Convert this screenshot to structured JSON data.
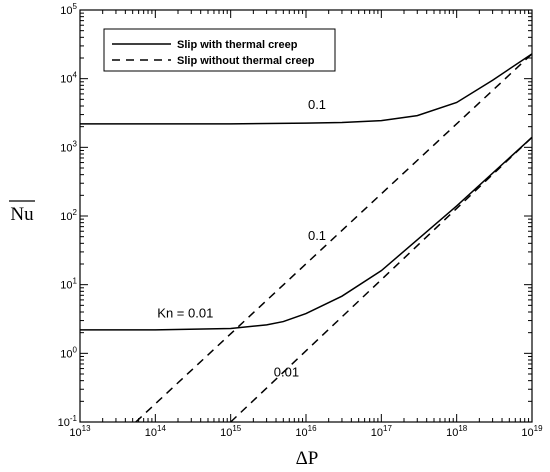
{
  "chart_data": {
    "type": "line",
    "xlabel": "ΔP",
    "ylabel": "Nu",
    "xscale": "log",
    "yscale": "log",
    "xlim": [
      10000000000000.0,
      1e+19
    ],
    "ylim": [
      0.1,
      100000
    ],
    "grid": false,
    "legend_position": "top-left",
    "x_ticks": [
      {
        "base": "10",
        "exp": "13",
        "value": 10000000000000.0
      },
      {
        "base": "10",
        "exp": "14",
        "value": 100000000000000.0
      },
      {
        "base": "10",
        "exp": "15",
        "value": 1000000000000000.0
      },
      {
        "base": "10",
        "exp": "16",
        "value": 1e+16
      },
      {
        "base": "10",
        "exp": "17",
        "value": 1e+17
      },
      {
        "base": "10",
        "exp": "18",
        "value": 1e+18
      },
      {
        "base": "10",
        "exp": "19",
        "value": 1e+19
      }
    ],
    "y_ticks": [
      {
        "base": "10",
        "exp": "-1",
        "value": 0.1
      },
      {
        "base": "10",
        "exp": "0",
        "value": 1
      },
      {
        "base": "10",
        "exp": "1",
        "value": 10
      },
      {
        "base": "10",
        "exp": "2",
        "value": 100
      },
      {
        "base": "10",
        "exp": "3",
        "value": 1000
      },
      {
        "base": "10",
        "exp": "4",
        "value": 10000
      },
      {
        "base": "10",
        "exp": "5",
        "value": 100000
      }
    ],
    "legend": [
      {
        "label": "Slip with thermal creep",
        "style": "solid"
      },
      {
        "label": "Slip without thermal creep",
        "style": "dashed"
      }
    ],
    "series": [
      {
        "style": "solid",
        "group": 0,
        "x": [
          10000000000000.0,
          100000000000000.0,
          1000000000000000.0,
          1e+16,
          3e+16,
          1e+17,
          3e+17,
          1e+18,
          3e+18,
          1e+19
        ],
        "y": [
          2200,
          2200,
          2200,
          2250,
          2300,
          2450,
          2900,
          4500,
          9500,
          23000
        ]
      },
      {
        "style": "dashed",
        "group": 0,
        "x": [
          55000000000000.0,
          1e+19
        ],
        "y": [
          0.1,
          23000
        ]
      },
      {
        "style": "solid",
        "group": 1,
        "x": [
          10000000000000.0,
          100000000000000.0,
          1000000000000000.0,
          3000000000000000.0,
          5000000000000000.0,
          1e+16,
          3e+16,
          1e+17,
          3e+17,
          1e+18,
          3e+18,
          1e+19
        ],
        "y": [
          2.2,
          2.2,
          2.3,
          2.6,
          2.9,
          3.8,
          6.8,
          16,
          45,
          140,
          420,
          1400
        ]
      },
      {
        "style": "dashed",
        "group": 1,
        "x": [
          1000000000000000.0,
          1e+19
        ],
        "y": [
          0.1,
          1400
        ]
      }
    ],
    "annotations": [
      {
        "text": "0.1",
        "x": 1.4e+16,
        "y": 3600
      },
      {
        "text": "0.1",
        "x": 1.4e+16,
        "y": 45
      },
      {
        "text": "Kn = 0.01",
        "x": 250000000000000.0,
        "y": 3.3
      },
      {
        "text": "0.01",
        "x": 5500000000000000.0,
        "y": 0.46
      }
    ]
  }
}
